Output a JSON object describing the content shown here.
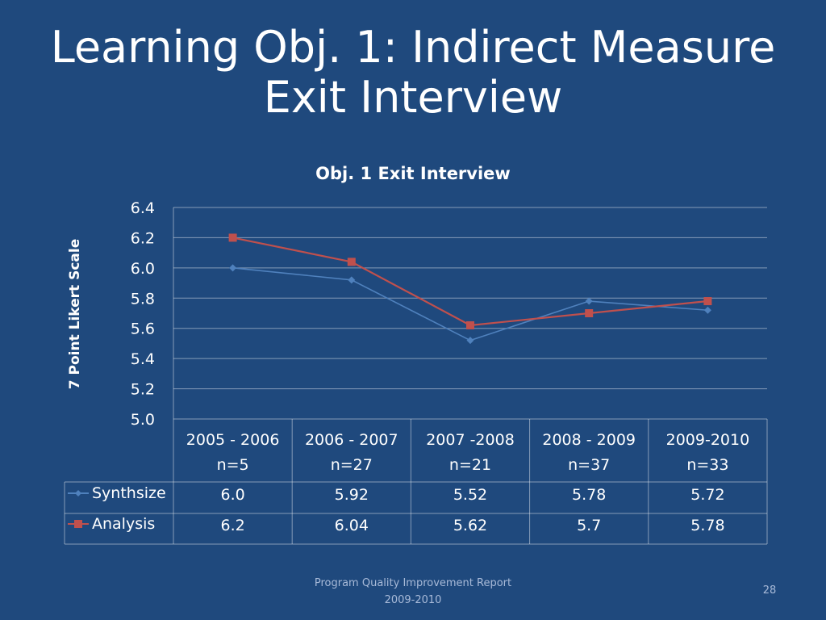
{
  "slide": {
    "title_line1": "Learning Obj. 1: Indirect Measure",
    "title_line2": "Exit Interview",
    "footer_line1": "Program Quality Improvement Report",
    "footer_line2": "2009-2010",
    "page_number": "28"
  },
  "colors": {
    "background": "#1f497d",
    "synthsize": "#4f81bd",
    "analysis": "#c0504d",
    "grid": "#ffffff"
  },
  "chart_data": {
    "type": "line",
    "title": "Obj. 1 Exit Interview",
    "xlabel": "",
    "ylabel": "7 Point Likert Scale",
    "ylim": [
      5.0,
      6.4
    ],
    "yticks": [
      "5.0",
      "5.2",
      "5.4",
      "5.6",
      "5.8",
      "6.0",
      "6.2",
      "6.4"
    ],
    "categories": [
      {
        "line1": "2005 - 2006",
        "line2": "n=5"
      },
      {
        "line1": "2006 - 2007",
        "line2": "n=27"
      },
      {
        "line1": "2007 -2008",
        "line2": "n=21"
      },
      {
        "line1": "2008 - 2009",
        "line2": "n=37"
      },
      {
        "line1": "2009-2010",
        "line2": "n=33"
      }
    ],
    "series": [
      {
        "name": "Synthsize",
        "marker": "diamond",
        "color": "#4f81bd",
        "values": [
          6.0,
          5.92,
          5.52,
          5.78,
          5.72
        ],
        "labels": [
          "6.0",
          "5.92",
          "5.52",
          "5.78",
          "5.72"
        ]
      },
      {
        "name": "Analysis",
        "marker": "square",
        "color": "#c0504d",
        "values": [
          6.2,
          6.04,
          5.62,
          5.7,
          5.78
        ],
        "labels": [
          "6.2",
          "6.04",
          "5.62",
          "5.7",
          "5.78"
        ]
      }
    ],
    "grid": true,
    "legend": "data-table"
  }
}
